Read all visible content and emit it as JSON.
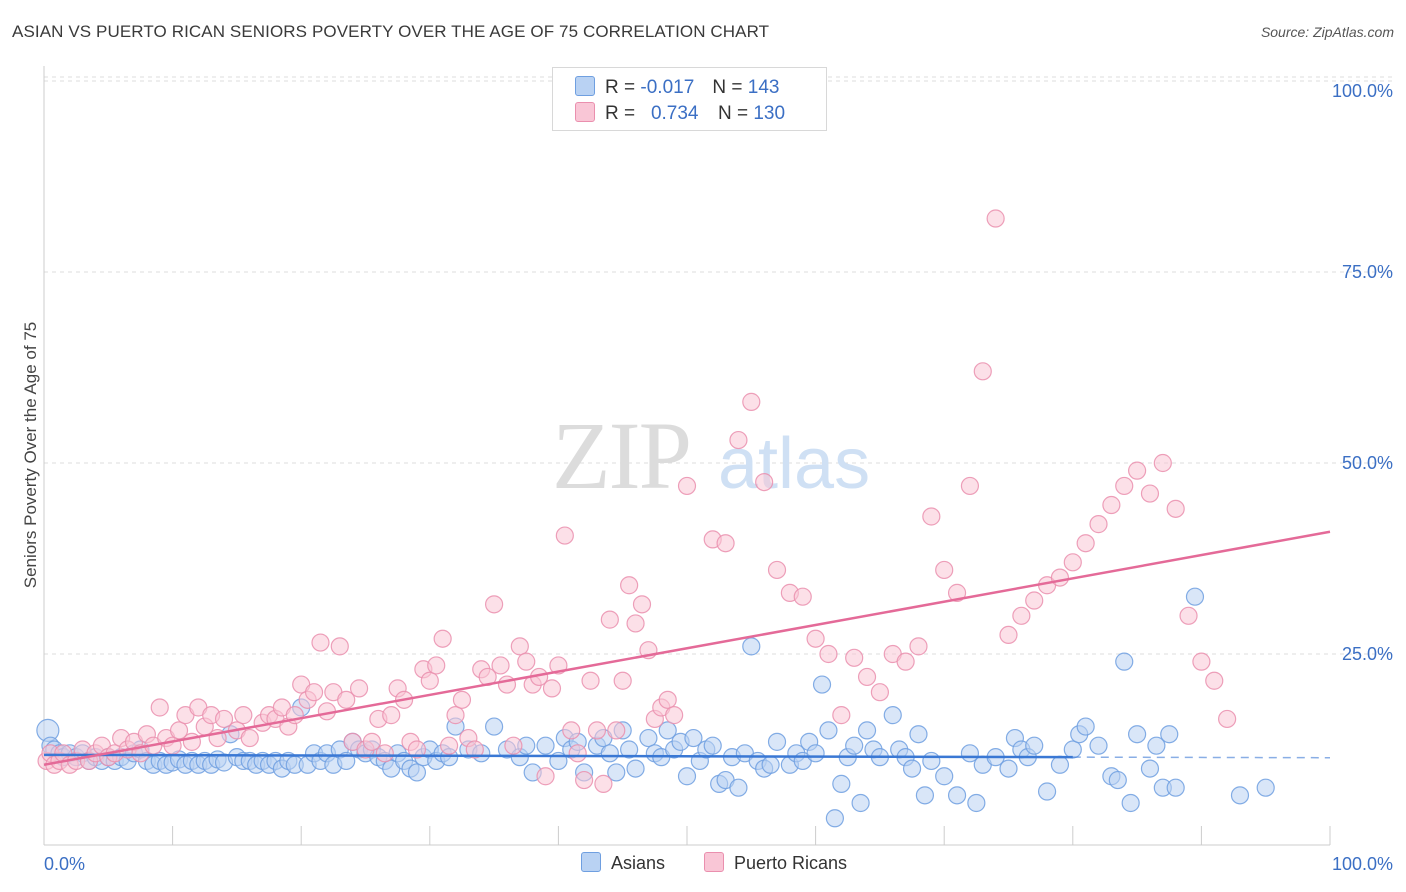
{
  "title": "ASIAN VS PUERTO RICAN SENIORS POVERTY OVER THE AGE OF 75 CORRELATION CHART",
  "source": "Source: ZipAtlas.com",
  "watermark": {
    "zip": "ZIP",
    "atlas": "atlas"
  },
  "legend": {
    "r_label": "R =",
    "n_label": "N =",
    "rows": [
      {
        "r": "-0.017",
        "n": "143",
        "fill": "#b9d2f3",
        "stroke": "#6f9fe0"
      },
      {
        "r": "0.734",
        "n": "130",
        "fill": "#f9c6d6",
        "stroke": "#ea8fae"
      }
    ]
  },
  "bottom_legend": {
    "asians": "Asians",
    "puerto_ricans": "Puerto Ricans"
  },
  "chart_data": {
    "type": "scatter",
    "xlabel": "",
    "ylabel": "Seniors Poverty Over the Age of 75",
    "xlim": [
      0,
      100
    ],
    "ylim": [
      0,
      100
    ],
    "x_tick_labels": [
      "0.0%",
      "100.0%"
    ],
    "y_tick_labels": [
      {
        "value": 100,
        "label": "100.0%"
      },
      {
        "value": 75,
        "label": "75.0%"
      },
      {
        "value": 50,
        "label": "50.0%"
      },
      {
        "value": 25,
        "label": "25.0%"
      }
    ],
    "colors": {
      "asians": "#6f9fe0",
      "asians_fill": "#b9d2f3",
      "asians_line": "#3a78d4",
      "puerto_ricans": "#ea8fae",
      "puerto_ricans_fill": "#f9c6d6",
      "puerto_ricans_line": "#e46a98",
      "tick_label": "#3b6fc4",
      "grid": "#dddddd"
    },
    "series": [
      {
        "name": "Asians",
        "trend": {
          "x0": 0,
          "y0": 11.8,
          "x1": 80,
          "y1": 11.5,
          "dashed_to": 100
        },
        "points": [
          [
            0.3,
            15
          ],
          [
            0.5,
            13
          ],
          [
            0.8,
            12.5
          ],
          [
            1.2,
            12
          ],
          [
            1.5,
            11.5
          ],
          [
            2,
            12
          ],
          [
            2.5,
            11.5
          ],
          [
            3,
            12
          ],
          [
            3.5,
            11
          ],
          [
            4,
            11.5
          ],
          [
            4.5,
            11
          ],
          [
            5,
            11.5
          ],
          [
            5.5,
            11
          ],
          [
            6,
            11.5
          ],
          [
            6.5,
            11
          ],
          [
            7,
            12
          ],
          [
            7.5,
            12.5
          ],
          [
            8,
            11
          ],
          [
            8.5,
            10.5
          ],
          [
            9,
            11
          ],
          [
            9.5,
            10.5
          ],
          [
            10,
            10.8
          ],
          [
            10.5,
            11.2
          ],
          [
            11,
            10.5
          ],
          [
            11.5,
            11
          ],
          [
            12,
            10.5
          ],
          [
            12.5,
            11
          ],
          [
            13,
            10.5
          ],
          [
            13.5,
            11.2
          ],
          [
            14,
            10.8
          ],
          [
            14.5,
            14.5
          ],
          [
            15,
            11.5
          ],
          [
            15.5,
            11
          ],
          [
            16,
            11
          ],
          [
            16.5,
            10.5
          ],
          [
            17,
            11
          ],
          [
            17.5,
            10.5
          ],
          [
            18,
            11
          ],
          [
            18.5,
            10
          ],
          [
            19,
            11
          ],
          [
            19.5,
            10.5
          ],
          [
            20,
            18
          ],
          [
            20.5,
            10.5
          ],
          [
            21,
            12
          ],
          [
            21.5,
            11
          ],
          [
            22,
            12
          ],
          [
            22.5,
            10.5
          ],
          [
            23,
            12.5
          ],
          [
            23.5,
            11
          ],
          [
            24,
            13.5
          ],
          [
            24.5,
            12.5
          ],
          [
            25,
            12
          ],
          [
            25.5,
            12.5
          ],
          [
            26,
            11.5
          ],
          [
            26.5,
            11
          ],
          [
            27,
            10
          ],
          [
            27.5,
            12
          ],
          [
            28,
            11
          ],
          [
            28.5,
            10
          ],
          [
            29,
            9.5
          ],
          [
            29.5,
            11.5
          ],
          [
            30,
            12.5
          ],
          [
            30.5,
            11
          ],
          [
            31,
            12
          ],
          [
            31.5,
            11.5
          ],
          [
            32,
            15.5
          ],
          [
            33,
            12.5
          ],
          [
            34,
            12
          ],
          [
            35,
            15.5
          ],
          [
            36,
            12.5
          ],
          [
            37,
            11.5
          ],
          [
            37.5,
            13
          ],
          [
            38,
            9.5
          ],
          [
            39,
            13
          ],
          [
            40,
            11
          ],
          [
            40.5,
            14
          ],
          [
            41,
            12.5
          ],
          [
            41.5,
            13.5
          ],
          [
            42,
            9.5
          ],
          [
            43,
            13
          ],
          [
            43.5,
            14
          ],
          [
            44,
            12
          ],
          [
            44.5,
            9.5
          ],
          [
            45,
            15
          ],
          [
            45.5,
            12.5
          ],
          [
            46,
            10
          ],
          [
            47,
            14
          ],
          [
            47.5,
            12
          ],
          [
            48,
            11.5
          ],
          [
            48.5,
            15
          ],
          [
            49,
            12.5
          ],
          [
            49.5,
            13.5
          ],
          [
            50,
            9
          ],
          [
            50.5,
            14
          ],
          [
            51,
            11
          ],
          [
            51.5,
            12.5
          ],
          [
            52,
            13
          ],
          [
            52.5,
            8
          ],
          [
            53,
            8.5
          ],
          [
            53.5,
            11.5
          ],
          [
            54,
            7.5
          ],
          [
            54.5,
            12
          ],
          [
            55,
            26
          ],
          [
            55.5,
            11
          ],
          [
            56,
            10
          ],
          [
            56.5,
            10.5
          ],
          [
            57,
            13.5
          ],
          [
            58,
            10.5
          ],
          [
            58.5,
            12
          ],
          [
            59,
            11
          ],
          [
            59.5,
            13.5
          ],
          [
            60,
            12
          ],
          [
            60.5,
            21
          ],
          [
            61,
            15
          ],
          [
            61.5,
            3.5
          ],
          [
            62,
            8
          ],
          [
            62.5,
            11.5
          ],
          [
            63,
            13
          ],
          [
            63.5,
            5.5
          ],
          [
            64,
            15
          ],
          [
            64.5,
            12.5
          ],
          [
            65,
            11.5
          ],
          [
            66,
            17
          ],
          [
            66.5,
            12.5
          ],
          [
            67,
            11.5
          ],
          [
            67.5,
            10
          ],
          [
            68,
            14.5
          ],
          [
            68.5,
            6.5
          ],
          [
            69,
            11
          ],
          [
            70,
            9
          ],
          [
            71,
            6.5
          ],
          [
            72,
            12
          ],
          [
            72.5,
            5.5
          ],
          [
            73,
            10.5
          ],
          [
            74,
            11.5
          ],
          [
            75,
            10
          ],
          [
            75.5,
            14
          ],
          [
            76,
            12.5
          ],
          [
            76.5,
            11.5
          ],
          [
            77,
            13
          ],
          [
            78,
            7
          ],
          [
            79,
            10.5
          ],
          [
            80,
            12.5
          ],
          [
            80.5,
            14.5
          ],
          [
            81,
            15.5
          ],
          [
            82,
            13
          ],
          [
            83,
            9
          ],
          [
            83.5,
            8.5
          ],
          [
            84,
            24
          ],
          [
            84.5,
            5.5
          ],
          [
            85,
            14.5
          ],
          [
            86,
            10
          ],
          [
            86.5,
            13
          ],
          [
            87,
            7.5
          ],
          [
            87.5,
            14.5
          ],
          [
            88,
            7.5
          ],
          [
            89.5,
            32.5
          ],
          [
            93,
            6.5
          ],
          [
            95,
            7.5
          ]
        ]
      },
      {
        "name": "Puerto Ricans",
        "trend": {
          "x0": 0,
          "y0": 10.5,
          "x1": 100,
          "y1": 41
        },
        "points": [
          [
            0.2,
            11
          ],
          [
            0.5,
            12
          ],
          [
            0.8,
            10.5
          ],
          [
            1.2,
            11
          ],
          [
            1.5,
            12
          ],
          [
            2,
            10.5
          ],
          [
            2.5,
            11
          ],
          [
            3,
            12.5
          ],
          [
            3.5,
            11
          ],
          [
            4,
            12
          ],
          [
            4.5,
            13
          ],
          [
            5,
            11.5
          ],
          [
            5.5,
            12
          ],
          [
            6,
            14
          ],
          [
            6.5,
            12.5
          ],
          [
            7,
            13.5
          ],
          [
            7.5,
            12
          ],
          [
            8,
            14.5
          ],
          [
            8.5,
            13
          ],
          [
            9,
            18
          ],
          [
            9.5,
            14
          ],
          [
            10,
            13
          ],
          [
            10.5,
            15
          ],
          [
            11,
            17
          ],
          [
            11.5,
            13.5
          ],
          [
            12,
            18
          ],
          [
            12.5,
            15.5
          ],
          [
            13,
            17
          ],
          [
            13.5,
            14
          ],
          [
            14,
            16.5
          ],
          [
            15,
            15
          ],
          [
            15.5,
            17
          ],
          [
            16,
            14
          ],
          [
            17,
            16
          ],
          [
            17.5,
            17
          ],
          [
            18,
            16.5
          ],
          [
            18.5,
            18
          ],
          [
            19,
            15.5
          ],
          [
            19.5,
            17
          ],
          [
            20,
            21
          ],
          [
            20.5,
            19
          ],
          [
            21,
            20
          ],
          [
            21.5,
            26.5
          ],
          [
            22,
            17.5
          ],
          [
            22.5,
            20
          ],
          [
            23,
            26
          ],
          [
            23.5,
            19
          ],
          [
            24,
            13.5
          ],
          [
            24.5,
            20.5
          ],
          [
            25,
            12.5
          ],
          [
            25.5,
            13.5
          ],
          [
            26,
            16.5
          ],
          [
            26.5,
            12
          ],
          [
            27,
            17
          ],
          [
            27.5,
            20.5
          ],
          [
            28,
            19
          ],
          [
            28.5,
            13.5
          ],
          [
            29,
            12.5
          ],
          [
            29.5,
            23
          ],
          [
            30,
            21.5
          ],
          [
            30.5,
            23.5
          ],
          [
            31,
            27
          ],
          [
            31.5,
            13
          ],
          [
            32,
            17
          ],
          [
            32.5,
            19
          ],
          [
            33,
            14
          ],
          [
            33.5,
            12.5
          ],
          [
            34,
            23
          ],
          [
            34.5,
            22
          ],
          [
            35,
            31.5
          ],
          [
            35.5,
            23.5
          ],
          [
            36,
            21
          ],
          [
            36.5,
            13
          ],
          [
            37,
            26
          ],
          [
            37.5,
            24
          ],
          [
            38,
            21
          ],
          [
            38.5,
            22
          ],
          [
            39,
            9
          ],
          [
            39.5,
            20.5
          ],
          [
            40,
            23.5
          ],
          [
            40.5,
            40.5
          ],
          [
            41,
            15
          ],
          [
            41.5,
            12
          ],
          [
            42,
            8.5
          ],
          [
            42.5,
            21.5
          ],
          [
            43,
            15
          ],
          [
            43.5,
            8
          ],
          [
            44,
            29.5
          ],
          [
            44.5,
            15
          ],
          [
            45,
            21.5
          ],
          [
            45.5,
            34
          ],
          [
            46,
            29
          ],
          [
            46.5,
            31.5
          ],
          [
            47,
            25.5
          ],
          [
            47.5,
            16.5
          ],
          [
            48,
            18
          ],
          [
            48.5,
            19
          ],
          [
            49,
            17
          ],
          [
            50,
            47
          ],
          [
            52,
            40
          ],
          [
            53,
            39.5
          ],
          [
            54,
            53
          ],
          [
            55,
            58
          ],
          [
            56,
            47.5
          ],
          [
            57,
            36
          ],
          [
            58,
            33
          ],
          [
            59,
            32.5
          ],
          [
            60,
            27
          ],
          [
            61,
            25
          ],
          [
            62,
            17
          ],
          [
            63,
            24.5
          ],
          [
            64,
            22
          ],
          [
            65,
            20
          ],
          [
            66,
            25
          ],
          [
            67,
            24
          ],
          [
            68,
            26
          ],
          [
            69,
            43
          ],
          [
            70,
            36
          ],
          [
            71,
            33
          ],
          [
            72,
            47
          ],
          [
            73,
            62
          ],
          [
            74,
            82
          ],
          [
            75,
            27.5
          ],
          [
            76,
            30
          ],
          [
            77,
            32
          ],
          [
            78,
            34
          ],
          [
            79,
            35
          ],
          [
            80,
            37
          ],
          [
            81,
            39.5
          ],
          [
            82,
            42
          ],
          [
            83,
            44.5
          ],
          [
            84,
            47
          ],
          [
            85,
            49
          ],
          [
            86,
            46
          ],
          [
            87,
            50
          ],
          [
            88,
            44
          ],
          [
            89,
            30
          ],
          [
            90,
            24
          ],
          [
            91,
            21.5
          ],
          [
            92,
            16.5
          ]
        ]
      }
    ]
  }
}
